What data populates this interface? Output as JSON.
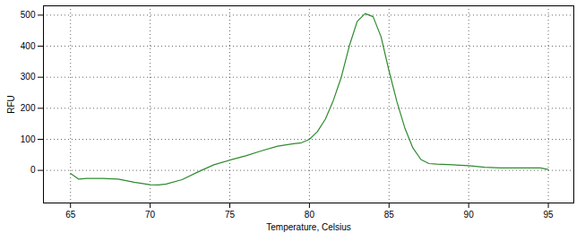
{
  "chart_data": {
    "type": "line",
    "x_label": "Temperature, Celsius",
    "y_label": "RFU",
    "color": "#2e8b2e",
    "grid": true,
    "xlim": [
      63.3,
      96.6
    ],
    "xticks": [
      65,
      70,
      75,
      80,
      85,
      90,
      95
    ],
    "ylim": [
      -105,
      530
    ],
    "yticks": [
      0,
      100,
      200,
      300,
      400,
      500
    ],
    "x": [
      65,
      65.5,
      66,
      67,
      68,
      69,
      70,
      70.5,
      71,
      72,
      73,
      74,
      75,
      76,
      77,
      78,
      79,
      79.5,
      80,
      80.5,
      81,
      81.5,
      82,
      82.5,
      83,
      83.5,
      84,
      84.5,
      85,
      85.5,
      86,
      86.5,
      87,
      87.5,
      88,
      89,
      90,
      91,
      92,
      93,
      94,
      94.5,
      95
    ],
    "values": [
      -10,
      -28,
      -26,
      -26,
      -28,
      -38,
      -46,
      -47,
      -44,
      -30,
      -5,
      18,
      33,
      47,
      63,
      78,
      86,
      89,
      100,
      125,
      165,
      225,
      300,
      400,
      480,
      505,
      495,
      430,
      320,
      220,
      135,
      72,
      35,
      22,
      20,
      18,
      15,
      10,
      8,
      8,
      8,
      8,
      3
    ]
  }
}
